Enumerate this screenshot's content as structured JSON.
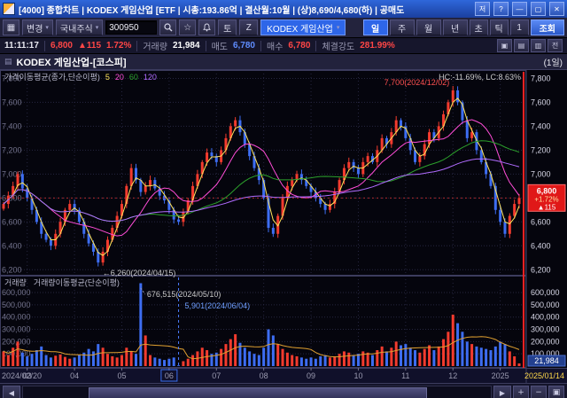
{
  "window": {
    "title": "[4000] 종합차트 | KODEX 게임산업 [ETF | 시총:193.86억 | 결산월:10월 | (상)8,690/4,680(하) | 공매도",
    "controls": [
      "저",
      "?",
      "―",
      "▢",
      "✕"
    ]
  },
  "toolbar": {
    "menu_icon": "▦",
    "caret": "▾",
    "change_button": "변경",
    "market_dropdown": "국내주식",
    "code_input": "300950",
    "favorite_icon": "☆",
    "sat_button": "토",
    "z_button": "Z",
    "symbol_chip": "KODEX 게임산업",
    "period_buttons": [
      {
        "label": "일",
        "active": true
      },
      {
        "label": "주"
      },
      {
        "label": "월"
      },
      {
        "label": "년"
      }
    ],
    "small_buttons": [
      "초",
      "틱",
      "1"
    ],
    "query_button": "조회"
  },
  "info_bar": {
    "time": "11:11:17",
    "price": "6,800",
    "change": "▲115",
    "change_pct": "1.72%",
    "volume_label": "거래량",
    "volume_value": "21,984",
    "ask_label": "매도",
    "ask_value": "6,780",
    "bid_label": "매수",
    "bid_value": "6,780",
    "strength_label": "체결강도",
    "strength_value": "281.99%",
    "right_buttons": [
      "▣",
      "▤",
      "▥"
    ],
    "jeon_label": "전"
  },
  "chart_header": {
    "icon": "▤",
    "title": "KODEX 게임산업-[코스피]",
    "period_label": "(1일)"
  },
  "scrollbar": {
    "left_arrow": "◀",
    "right_arrow": "▶",
    "zoom_buttons": [
      "+",
      "−",
      "▣"
    ]
  },
  "chart_data": {
    "type": "candlestick+volume",
    "title": "KODEX 게임산업-[코스피]",
    "period": "(1일)",
    "legend": {
      "price": "가격이동평균(종가,단순이평)",
      "volume": "거래량",
      "volume_ma": "거래량이동평균(단순이평)"
    },
    "price_axis": {
      "ticks": [
        "7,800",
        "7,600",
        "7,400",
        "7,200",
        "7,000",
        "6,800",
        "6,600",
        "6,400",
        "6,200"
      ],
      "min": 6150,
      "max": 7870
    },
    "volume_axis": {
      "ticks": [
        "600,000",
        "500,000",
        "400,000",
        "300,000",
        "200,000",
        "100,000"
      ],
      "max": 680000
    },
    "x_labels": [
      {
        "label": "2024/02/20",
        "index": 0,
        "align": "start"
      },
      {
        "label": "03",
        "index": 5
      },
      {
        "label": "04",
        "index": 15
      },
      {
        "label": "05",
        "index": 25
      },
      {
        "label": "06",
        "index": 35,
        "boxed": true
      },
      {
        "label": "07",
        "index": 45
      },
      {
        "label": "08",
        "index": 55
      },
      {
        "label": "09",
        "index": 65
      },
      {
        "label": "10",
        "index": 75
      },
      {
        "label": "11",
        "index": 85
      },
      {
        "label": "12",
        "index": 95
      },
      {
        "label": "2025",
        "index": 105
      },
      {
        "label": "2025/01/14",
        "index": 109,
        "align": "end",
        "color": "#ffd94a"
      }
    ],
    "closes": [
      6750,
      6820,
      6900,
      7000,
      6880,
      6800,
      6700,
      6600,
      6500,
      6450,
      6400,
      6500,
      6600,
      6700,
      6750,
      6700,
      6600,
      6500,
      6420,
      6350,
      6260,
      6350,
      6450,
      6550,
      6650,
      6750,
      6900,
      7050,
      6950,
      6850,
      6900,
      6950,
      6880,
      6820,
      6780,
      6700,
      6620,
      6600,
      6680,
      6780,
      6900,
      7000,
      7100,
      7180,
      7150,
      7100,
      7200,
      7300,
      7400,
      7450,
      7350,
      7250,
      7150,
      7050,
      6950,
      6800,
      6550,
      6500,
      6650,
      6800,
      6900,
      6950,
      7000,
      6950,
      6900,
      6850,
      6800,
      6750,
      6700,
      6750,
      6850,
      6950,
      7050,
      7100,
      7050,
      7000,
      7100,
      7150,
      7100,
      7200,
      7300,
      7250,
      7350,
      7450,
      7400,
      7300,
      7200,
      7100,
      7150,
      7250,
      7350,
      7300,
      7400,
      7500,
      7600,
      7700,
      7600,
      7450,
      7300,
      7350,
      7200,
      7100,
      7000,
      6900,
      6700,
      6600,
      6500,
      6650,
      6750,
      6800
    ],
    "volumes": [
      120000,
      90000,
      150000,
      200000,
      110000,
      80000,
      100000,
      130000,
      160000,
      90000,
      70000,
      85000,
      95000,
      75000,
      60000,
      70000,
      90000,
      110000,
      140000,
      120000,
      180000,
      150000,
      100000,
      80000,
      70000,
      90000,
      150000,
      120000,
      100000,
      676515,
      250000,
      90000,
      70000,
      60000,
      50000,
      60000,
      70000,
      5901,
      40000,
      60000,
      90000,
      120000,
      150000,
      130000,
      100000,
      110000,
      140000,
      180000,
      220000,
      260000,
      190000,
      150000,
      120000,
      100000,
      90000,
      150000,
      300000,
      250000,
      180000,
      140000,
      110000,
      90000,
      80000,
      70000,
      60000,
      70000,
      60000,
      80000,
      90000,
      70000,
      80000,
      100000,
      120000,
      110000,
      90000,
      100000,
      120000,
      110000,
      90000,
      130000,
      160000,
      120000,
      150000,
      200000,
      170000,
      180000,
      150000,
      130000,
      110000,
      140000,
      170000,
      130000,
      160000,
      220000,
      280000,
      420000,
      350000,
      280000,
      200000,
      180000,
      160000,
      150000,
      140000,
      130000,
      160000,
      200000,
      180000,
      120000,
      80000,
      21984
    ],
    "ma": {
      "labels": [
        "5",
        "20",
        "60",
        "120"
      ],
      "windows": [
        3,
        10,
        30,
        60
      ],
      "colors": [
        "#ffe45c",
        "#ff4dd8",
        "#2ca02c",
        "#b06cff"
      ],
      "volume_ma_window": 10,
      "volume_ma_color": "#e0a030"
    },
    "annotations": {
      "high": {
        "text": "7,700(2024/12/02)",
        "index": 95,
        "price": 7700,
        "color": "#ff5050"
      },
      "low": {
        "text": "←6,260(2024/04/15)",
        "index": 20,
        "price": 6260,
        "color": "#cccccc"
      },
      "hc_lc": {
        "text": "HC:-11.69%, LC:8.63%",
        "color": "#c8c8c8"
      },
      "vol_spike": {
        "text": "676,515(2024/05/10)",
        "index": 29,
        "color": "#c8c8c8"
      },
      "vol_low": {
        "text": "5,901(2024/06/04)",
        "index": 37,
        "color": "#6f9fff"
      }
    },
    "markers": {
      "price_badge": {
        "lines": [
          "6,800",
          "+1.72%",
          "▲115"
        ],
        "price": 6800,
        "bg": "#e01818"
      },
      "volume_badge": {
        "value": "21,984",
        "bg": "#23408f"
      }
    },
    "colors": {
      "up": "#f43b2e",
      "down": "#3d6df2",
      "grid": "#262640",
      "bg": "#05050d",
      "border": "#3c3c5e"
    }
  }
}
